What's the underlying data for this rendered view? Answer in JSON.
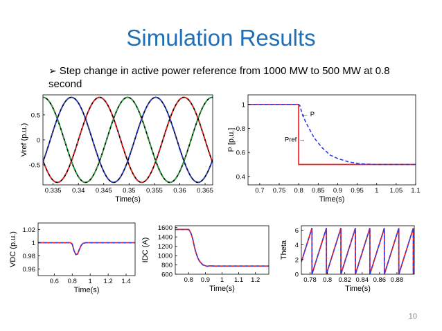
{
  "slide": {
    "title": "Simulation Results",
    "bullet_marker": "➢",
    "bullet": "Step change in active power reference from 1000 MW to 500 MW at 0.8 second",
    "page_number": "10"
  },
  "colors": {
    "red": "#ff1a1a",
    "blue": "#2b3fe0",
    "green": "#22a833",
    "black": "#000000"
  },
  "chart_data": [
    {
      "id": "vref",
      "type": "line",
      "xlabel": "Time(s)",
      "ylabel": "Vref (p.u.)",
      "xlim": [
        0.333,
        0.3665
      ],
      "ylim": [
        -0.9,
        0.9
      ],
      "xticks": [
        0.335,
        0.34,
        0.345,
        0.35,
        0.355,
        0.36,
        0.365
      ],
      "xtick_labels": [
        "0.335",
        "0.34",
        "0.345",
        "0.35",
        "0.355",
        "0.36",
        "0.365"
      ],
      "yticks": [
        -0.5,
        0,
        0.5
      ],
      "ytick_labels": [
        "-0.5",
        "0",
        "0.5"
      ],
      "series": [
        {
          "color": "black",
          "style": "solid",
          "sine": {
            "amplitude": 0.85,
            "freq_hz": 60,
            "phase_deg": 216
          }
        },
        {
          "color": "red",
          "style": "dashed",
          "sine": {
            "amplitude": 0.85,
            "freq_hz": 60,
            "phase_deg": 216
          }
        },
        {
          "color": "black",
          "style": "solid",
          "sine": {
            "amplitude": 0.85,
            "freq_hz": 60,
            "phase_deg": 96
          }
        },
        {
          "color": "green",
          "style": "dashed",
          "sine": {
            "amplitude": 0.85,
            "freq_hz": 60,
            "phase_deg": 96
          }
        },
        {
          "color": "black",
          "style": "solid",
          "sine": {
            "amplitude": 0.85,
            "freq_hz": 60,
            "phase_deg": -24
          }
        },
        {
          "color": "blue",
          "style": "dashed",
          "sine": {
            "amplitude": 0.85,
            "freq_hz": 60,
            "phase_deg": -24
          }
        }
      ]
    },
    {
      "id": "power",
      "type": "line",
      "xlabel": "Time(s)",
      "ylabel": "P [p.u.]",
      "xlim": [
        0.67,
        1.1
      ],
      "ylim": [
        0.33,
        1.08
      ],
      "xticks": [
        0.7,
        0.75,
        0.8,
        0.85,
        0.9,
        0.95,
        1,
        1.05,
        1.1
      ],
      "xtick_labels": [
        "0.7",
        "0.75",
        "0.8",
        "0.85",
        "0.9",
        "0.95",
        "1",
        "1.05",
        "1.1"
      ],
      "yticks": [
        0.4,
        0.6,
        0.8,
        1
      ],
      "ytick_labels": [
        "0.4",
        "0.6",
        "0.8",
        "1"
      ],
      "annotations": [
        {
          "text": "← P",
          "x": 0.808,
          "y": 0.9
        },
        {
          "text": "Pref →",
          "x": 0.764,
          "y": 0.69
        }
      ],
      "series": [
        {
          "name": "Pref",
          "color": "red",
          "style": "solid",
          "x": [
            0.67,
            0.8,
            0.8,
            1.1
          ],
          "y": [
            1.0,
            1.0,
            0.5,
            0.5
          ]
        },
        {
          "name": "P",
          "color": "blue",
          "style": "dashed",
          "x": [
            0.67,
            0.8,
            0.803,
            0.81,
            0.82,
            0.84,
            0.86,
            0.88,
            0.9,
            0.93,
            0.96,
            1.0,
            1.1
          ],
          "y": [
            1.0,
            1.0,
            0.99,
            0.91,
            0.84,
            0.72,
            0.64,
            0.58,
            0.55,
            0.52,
            0.505,
            0.5,
            0.5
          ]
        }
      ]
    },
    {
      "id": "vdc",
      "type": "line",
      "xlabel": "Time(s)",
      "ylabel": "VDC (p.u.)",
      "xlim": [
        0.42,
        1.5
      ],
      "ylim": [
        0.95,
        1.03
      ],
      "xticks": [
        0.6,
        0.8,
        1,
        1.2,
        1.4
      ],
      "xtick_labels": [
        "0.6",
        "0.8",
        "1",
        "1.2",
        "1.4"
      ],
      "yticks": [
        0.96,
        0.98,
        1,
        1.02
      ],
      "ytick_labels": [
        "0.96",
        "0.98",
        "1",
        "1.02"
      ],
      "series": [
        {
          "color": "red",
          "style": "solid",
          "x": [
            0.42,
            0.78,
            0.8,
            0.82,
            0.84,
            0.86,
            0.88,
            0.9,
            0.92,
            0.95,
            1.0,
            1.5
          ],
          "y": [
            1.0,
            1.0,
            0.998,
            0.988,
            0.982,
            0.983,
            0.99,
            0.996,
            0.999,
            1.0,
            1.0,
            1.0
          ]
        },
        {
          "color": "blue",
          "style": "dashed",
          "x": [
            0.42,
            0.78,
            0.8,
            0.82,
            0.84,
            0.86,
            0.88,
            0.9,
            0.92,
            0.95,
            1.0,
            1.5
          ],
          "y": [
            1.0,
            1.0,
            0.998,
            0.988,
            0.982,
            0.983,
            0.99,
            0.996,
            0.999,
            1.0,
            1.0,
            1.0
          ]
        }
      ]
    },
    {
      "id": "idc",
      "type": "line",
      "xlabel": "Time(s)",
      "ylabel": "IDC (A)",
      "xlim": [
        0.72,
        1.28
      ],
      "ylim": [
        600,
        1640
      ],
      "xticks": [
        0.8,
        0.9,
        1,
        1.1,
        1.2
      ],
      "xtick_labels": [
        "0.8",
        "0.9",
        "1",
        "1.1",
        "1.2"
      ],
      "yticks": [
        600,
        800,
        1000,
        1200,
        1400,
        1600
      ],
      "ytick_labels": [
        "600",
        "800",
        "1000",
        "1200",
        "1400",
        "1600"
      ],
      "series": [
        {
          "color": "red",
          "style": "solid",
          "x": [
            0.72,
            0.8,
            0.805,
            0.815,
            0.825,
            0.835,
            0.845,
            0.855,
            0.865,
            0.875,
            0.885,
            0.895,
            0.91,
            0.93,
            0.95,
            1.28
          ],
          "y": [
            1560,
            1560,
            1540,
            1470,
            1350,
            1180,
            1050,
            950,
            880,
            840,
            800,
            790,
            770,
            780,
            775,
            775
          ]
        },
        {
          "color": "blue",
          "style": "dashed",
          "x": [
            0.72,
            0.8,
            0.805,
            0.815,
            0.825,
            0.835,
            0.845,
            0.855,
            0.865,
            0.875,
            0.885,
            0.895,
            0.91,
            0.93,
            0.95,
            1.28
          ],
          "y": [
            1560,
            1560,
            1540,
            1470,
            1350,
            1180,
            1050,
            950,
            880,
            840,
            800,
            790,
            770,
            780,
            775,
            775
          ]
        }
      ]
    },
    {
      "id": "theta",
      "type": "line",
      "xlabel": "Time(s)",
      "ylabel": "Theta",
      "xlim": [
        0.77,
        0.9
      ],
      "ylim": [
        0,
        6.6
      ],
      "xticks": [
        0.78,
        0.8,
        0.82,
        0.84,
        0.86,
        0.88
      ],
      "xtick_labels": [
        "0.78",
        "0.8",
        "0.82",
        "0.84",
        "0.86",
        "0.88"
      ],
      "yticks": [
        0,
        2,
        4,
        6
      ],
      "ytick_labels": [
        "0",
        "2",
        "4",
        "6"
      ],
      "series": [
        {
          "color": "red",
          "style": "solid",
          "sawtooth": {
            "period": 0.016667,
            "first_wrap": 0.7822,
            "max": 6.283
          }
        },
        {
          "color": "blue",
          "style": "dashed",
          "sawtooth": {
            "period": 0.016667,
            "first_wrap": 0.7822,
            "max": 6.283
          }
        }
      ]
    }
  ]
}
